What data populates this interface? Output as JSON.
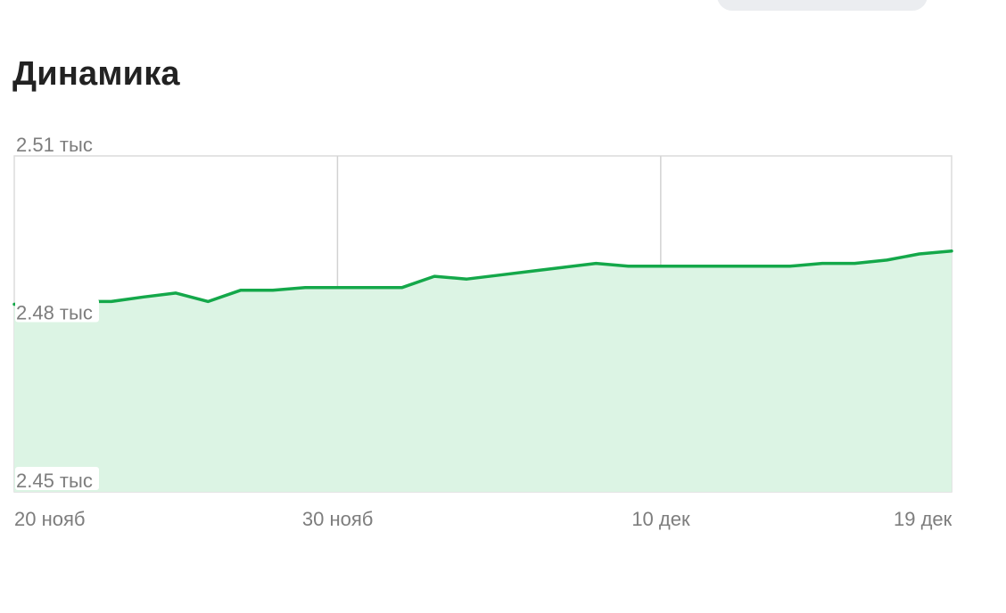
{
  "header": {
    "title": "Динамика"
  },
  "colors": {
    "line": "#14a84a",
    "area": "#dcf4e4",
    "grid": "#d2d2d2",
    "frame": "#dcdcdc",
    "label": "#7d7d7d"
  },
  "chart_data": {
    "type": "area",
    "title": "",
    "xlabel": "",
    "ylabel": "",
    "grid": true,
    "legend": "none",
    "x": [
      "20 нояб",
      "21 нояб",
      "22 нояб",
      "23 нояб",
      "24 нояб",
      "25 нояб",
      "26 нояб",
      "27 нояб",
      "28 нояб",
      "29 нояб",
      "30 нояб",
      "1 дек",
      "2 дек",
      "3 дек",
      "4 дек",
      "5 дек",
      "6 дек",
      "7 дек",
      "8 дек",
      "9 дек",
      "10 дек",
      "11 дек",
      "12 дек",
      "13 дек",
      "14 дек",
      "15 дек",
      "16 дек",
      "17 дек",
      "18 дек",
      "19 дек"
    ],
    "series": [
      {
        "values": [
          2483.5,
          2484.0,
          2484.0,
          2484.0,
          2484.8,
          2485.5,
          2484.0,
          2486.0,
          2486.0,
          2486.5,
          2486.5,
          2486.5,
          2486.5,
          2488.5,
          2488.0,
          2488.7,
          2489.4,
          2490.1,
          2490.8,
          2490.3,
          2490.3,
          2490.3,
          2490.3,
          2490.3,
          2490.3,
          2490.8,
          2490.8,
          2491.4,
          2492.5,
          2493.0
        ]
      }
    ],
    "ylim": [
      2450,
      2510
    ],
    "y_ticks": [
      {
        "value": 2510,
        "label": "2.51 тыс"
      },
      {
        "value": 2480,
        "label": "2.48 тыс"
      },
      {
        "value": 2450,
        "label": "2.45 тыс"
      }
    ],
    "x_ticks": [
      {
        "index": 0,
        "label": "20 нояб"
      },
      {
        "index": 10,
        "label": "30 нояб"
      },
      {
        "index": 20,
        "label": "10 дек"
      },
      {
        "index": 29,
        "label": "19 дек"
      }
    ]
  }
}
